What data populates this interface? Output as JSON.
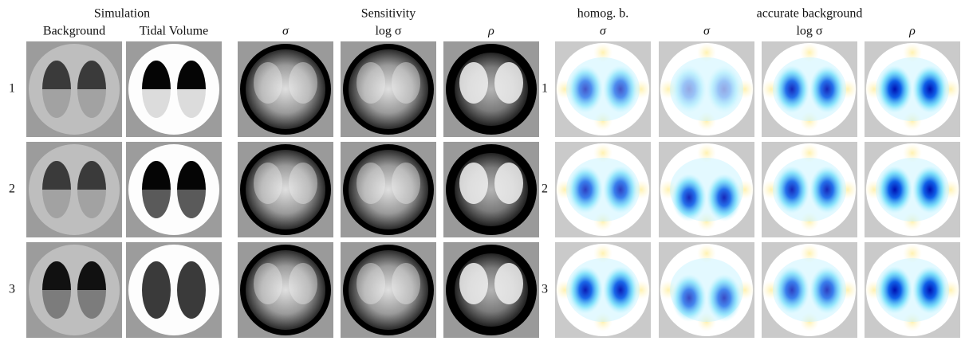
{
  "header": {
    "groups": [
      "Simulation",
      "Sensitivity",
      "homog. b.",
      "accurate background"
    ],
    "columns": [
      "Background",
      "Tidal Volume",
      "σ",
      "log σ",
      "ρ",
      "σ",
      "σ",
      "log σ",
      "ρ"
    ]
  },
  "rows": [
    "1",
    "2",
    "3"
  ]
}
